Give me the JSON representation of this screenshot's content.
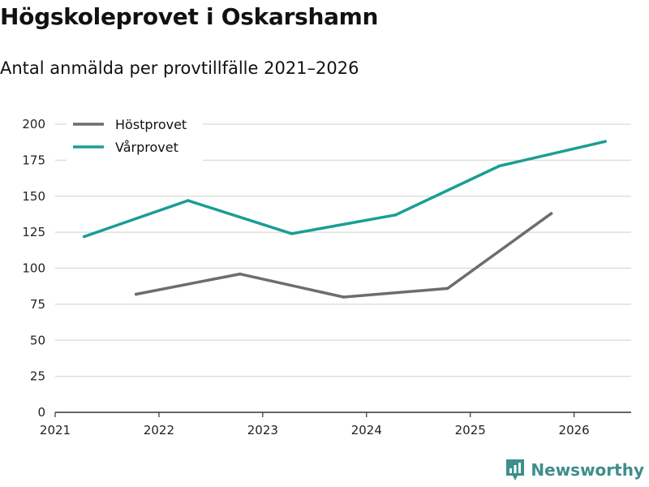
{
  "title": "Högskoleprovet i Oskarshamn",
  "subtitle": "Antal anmälda per provtillfälle 2021–2026",
  "brand": {
    "name": "Newsworthy",
    "color": "#3e8e8b",
    "icon": "newsworthy-logo-icon"
  },
  "colors": {
    "grid": "#d9d9d9",
    "axis": "#333333"
  },
  "chart_data": {
    "type": "line",
    "title": "Högskoleprovet i Oskarshamn",
    "subtitle": "Antal anmälda per provtillfälle 2021–2026",
    "xlabel": "",
    "ylabel": "",
    "xlim": [
      2021,
      2026.55
    ],
    "ylim": [
      0,
      200
    ],
    "x_ticks": [
      2021,
      2022,
      2023,
      2024,
      2025,
      2026
    ],
    "x_tick_labels": [
      "2021",
      "2022",
      "2023",
      "2024",
      "2025",
      "2026"
    ],
    "y_ticks": [
      0,
      25,
      50,
      75,
      100,
      125,
      150,
      175,
      200
    ],
    "y_tick_labels": [
      "0",
      "25",
      "50",
      "75",
      "100",
      "125",
      "150",
      "175",
      "200"
    ],
    "grid": true,
    "legend_position": "top-left",
    "series": [
      {
        "name": "Höstprovet",
        "color": "#6d6c72",
        "points": [
          {
            "x": 2021.78,
            "y": 82
          },
          {
            "x": 2022.78,
            "y": 96
          },
          {
            "x": 2023.78,
            "y": 80
          },
          {
            "x": 2024.78,
            "y": 86
          },
          {
            "x": 2025.78,
            "y": 138
          }
        ]
      },
      {
        "name": "Vårprovet",
        "color": "#1a9e94",
        "points": [
          {
            "x": 2021.28,
            "y": 122
          },
          {
            "x": 2022.28,
            "y": 147
          },
          {
            "x": 2023.28,
            "y": 124
          },
          {
            "x": 2024.28,
            "y": 137
          },
          {
            "x": 2025.28,
            "y": 171
          },
          {
            "x": 2026.3,
            "y": 188
          }
        ]
      }
    ]
  }
}
